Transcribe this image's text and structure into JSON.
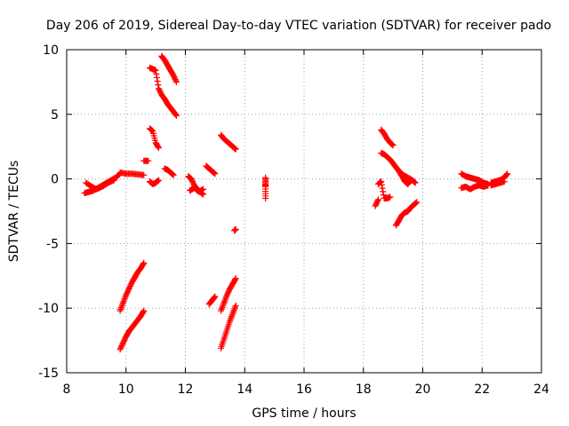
{
  "chart_data": {
    "type": "scatter",
    "title": "Day 206 of 2019, Sidereal Day-to-day VTEC variation (SDTVAR) for receiver pado",
    "xlabel": "GPS time / hours",
    "ylabel": "SDTVAR / TECUs",
    "xlim": [
      8,
      24
    ],
    "ylim": [
      -15,
      10
    ],
    "xticks": [
      8,
      10,
      12,
      14,
      16,
      18,
      20,
      22,
      24
    ],
    "yticks": [
      -15,
      -10,
      -5,
      0,
      5,
      10
    ],
    "xtick_labels": [
      "8",
      "10",
      "12",
      "14",
      "16",
      "18",
      "20",
      "22",
      "24"
    ],
    "ytick_labels": [
      "-15",
      "-10",
      "-5",
      "0",
      "5",
      "10"
    ],
    "grid": true,
    "marker": "+",
    "color": "#ff0000",
    "series": [
      {
        "name": "s1",
        "x": [
          8.6,
          8.75,
          8.9,
          9.05,
          9.2,
          9.35,
          9.5,
          9.65,
          9.8
        ],
        "y": [
          -1.1,
          -1.0,
          -0.9,
          -0.7,
          -0.5,
          -0.3,
          -0.1,
          0.1,
          0.4
        ]
      },
      {
        "name": "s2",
        "x": [
          8.65,
          8.85,
          9.0,
          9.2,
          9.4,
          9.6
        ],
        "y": [
          -0.3,
          -0.6,
          -0.8,
          -0.6,
          -0.3,
          -0.1
        ]
      },
      {
        "name": "s3",
        "x": [
          9.8,
          10.0,
          10.2,
          10.4,
          10.6
        ],
        "y": [
          0.5,
          0.4,
          0.4,
          0.35,
          0.3
        ]
      },
      {
        "name": "s4",
        "x": [
          9.8,
          9.9,
          10.0,
          10.1,
          10.2,
          10.3,
          10.4,
          10.5,
          10.6
        ],
        "y": [
          -10.2,
          -9.6,
          -9.0,
          -8.5,
          -8.0,
          -7.6,
          -7.2,
          -6.9,
          -6.5
        ]
      },
      {
        "name": "s5",
        "x": [
          9.8,
          9.9,
          10.0,
          10.1,
          10.2,
          10.3,
          10.4,
          10.5,
          10.6
        ],
        "y": [
          -13.2,
          -12.7,
          -12.2,
          -11.8,
          -11.5,
          -11.2,
          -10.9,
          -10.6,
          -10.2
        ]
      },
      {
        "name": "s6",
        "x": [
          10.8,
          10.9,
          11.0,
          11.1,
          11.2,
          11.3,
          11.4,
          11.5,
          11.6,
          11.7
        ],
        "y": [
          8.6,
          8.5,
          8.4,
          7.0,
          6.5,
          6.2,
          5.8,
          5.5,
          5.2,
          4.9
        ]
      },
      {
        "name": "s7",
        "x": [
          11.2,
          11.3,
          11.4,
          11.5,
          11.6,
          11.7
        ],
        "y": [
          9.5,
          9.2,
          8.8,
          8.4,
          8.0,
          7.5
        ]
      },
      {
        "name": "s8",
        "x": [
          10.8,
          10.9,
          11.0,
          11.1
        ],
        "y": [
          3.9,
          3.7,
          2.8,
          2.4
        ]
      },
      {
        "name": "s9",
        "x": [
          10.6,
          10.75
        ],
        "y": [
          1.4,
          1.4
        ]
      },
      {
        "name": "s10",
        "x": [
          11.3,
          11.4,
          11.5,
          11.6
        ],
        "y": [
          0.8,
          0.7,
          0.5,
          0.3
        ]
      },
      {
        "name": "s11",
        "x": [
          10.8,
          10.9,
          11.0,
          11.1
        ],
        "y": [
          -0.2,
          -0.4,
          -0.3,
          -0.1
        ]
      },
      {
        "name": "s12",
        "x": [
          12.1,
          12.2,
          12.3,
          12.4,
          12.5,
          12.6
        ],
        "y": [
          0.2,
          0.0,
          -0.5,
          -0.8,
          -1.0,
          -1.2
        ]
      },
      {
        "name": "s13",
        "x": [
          12.15,
          12.3,
          12.45,
          12.6
        ],
        "y": [
          -0.9,
          -0.7,
          -1.0,
          -0.8
        ]
      },
      {
        "name": "s14",
        "x": [
          12.7,
          12.8,
          12.9,
          13.0
        ],
        "y": [
          1.0,
          0.8,
          0.6,
          0.4
        ]
      },
      {
        "name": "s15",
        "x": [
          13.2,
          13.3,
          13.4,
          13.5,
          13.6,
          13.7
        ],
        "y": [
          3.4,
          3.1,
          2.9,
          2.7,
          2.5,
          2.3
        ]
      },
      {
        "name": "s16",
        "x": [
          13.65,
          13.7
        ],
        "y": [
          -4.0,
          -3.9
        ]
      },
      {
        "name": "s17",
        "x": [
          12.8,
          12.9,
          13.0
        ],
        "y": [
          -9.7,
          -9.4,
          -9.1
        ]
      },
      {
        "name": "s18",
        "x": [
          13.2,
          13.3,
          13.4,
          13.5,
          13.6,
          13.7
        ],
        "y": [
          -10.2,
          -9.6,
          -9.0,
          -8.5,
          -8.1,
          -7.7
        ]
      },
      {
        "name": "s19",
        "x": [
          13.2,
          13.3,
          13.4,
          13.5,
          13.6,
          13.7
        ],
        "y": [
          -13.1,
          -12.4,
          -11.7,
          -11.0,
          -10.4,
          -9.8
        ]
      },
      {
        "name": "s20",
        "x": [
          14.7,
          14.7,
          14.7,
          14.7
        ],
        "y": [
          0.1,
          -0.4,
          -0.6,
          -1.5
        ]
      },
      {
        "name": "s21",
        "x": [
          18.6,
          18.7,
          18.8,
          18.9,
          19.0
        ],
        "y": [
          3.8,
          3.5,
          3.1,
          2.8,
          2.6
        ]
      },
      {
        "name": "s22",
        "x": [
          18.6,
          18.7,
          18.8,
          18.9,
          19.0,
          19.1,
          19.2,
          19.3,
          19.4,
          19.5,
          19.6
        ],
        "y": [
          2.0,
          1.9,
          1.7,
          1.5,
          1.2,
          0.9,
          0.6,
          0.2,
          -0.2,
          -0.4,
          -0.1
        ]
      },
      {
        "name": "s23",
        "x": [
          19.2,
          19.35,
          19.5,
          19.65,
          19.75
        ],
        "y": [
          0.6,
          0.3,
          0.1,
          -0.1,
          -0.3
        ]
      },
      {
        "name": "s24",
        "x": [
          18.5,
          18.6,
          18.7,
          18.8,
          18.9
        ],
        "y": [
          -0.4,
          -0.2,
          -1.5,
          -1.5,
          -1.4
        ]
      },
      {
        "name": "s25",
        "x": [
          18.4,
          18.5
        ],
        "y": [
          -2.1,
          -1.6
        ]
      },
      {
        "name": "s26",
        "x": [
          19.1,
          19.2,
          19.3,
          19.4,
          19.5,
          19.6,
          19.7,
          19.8
        ],
        "y": [
          -3.6,
          -3.2,
          -2.8,
          -2.6,
          -2.5,
          -2.2,
          -2.0,
          -1.8
        ]
      },
      {
        "name": "s27",
        "x": [
          21.3,
          21.45,
          21.6,
          21.75,
          21.9,
          22.05,
          22.2
        ],
        "y": [
          0.4,
          0.2,
          0.1,
          0.0,
          -0.1,
          -0.3,
          -0.4
        ]
      },
      {
        "name": "s28",
        "x": [
          21.3,
          21.45,
          21.6,
          21.75,
          21.9,
          22.05,
          22.2
        ],
        "y": [
          -0.7,
          -0.6,
          -0.8,
          -0.6,
          -0.5,
          -0.6,
          -0.5
        ]
      },
      {
        "name": "s29",
        "x": [
          22.3,
          22.45,
          22.6,
          22.75,
          22.85
        ],
        "y": [
          -0.3,
          -0.2,
          -0.1,
          0.1,
          0.4
        ]
      },
      {
        "name": "s30",
        "x": [
          22.3,
          22.45,
          22.6,
          22.75
        ],
        "y": [
          -0.5,
          -0.4,
          -0.3,
          -0.2
        ]
      }
    ]
  }
}
